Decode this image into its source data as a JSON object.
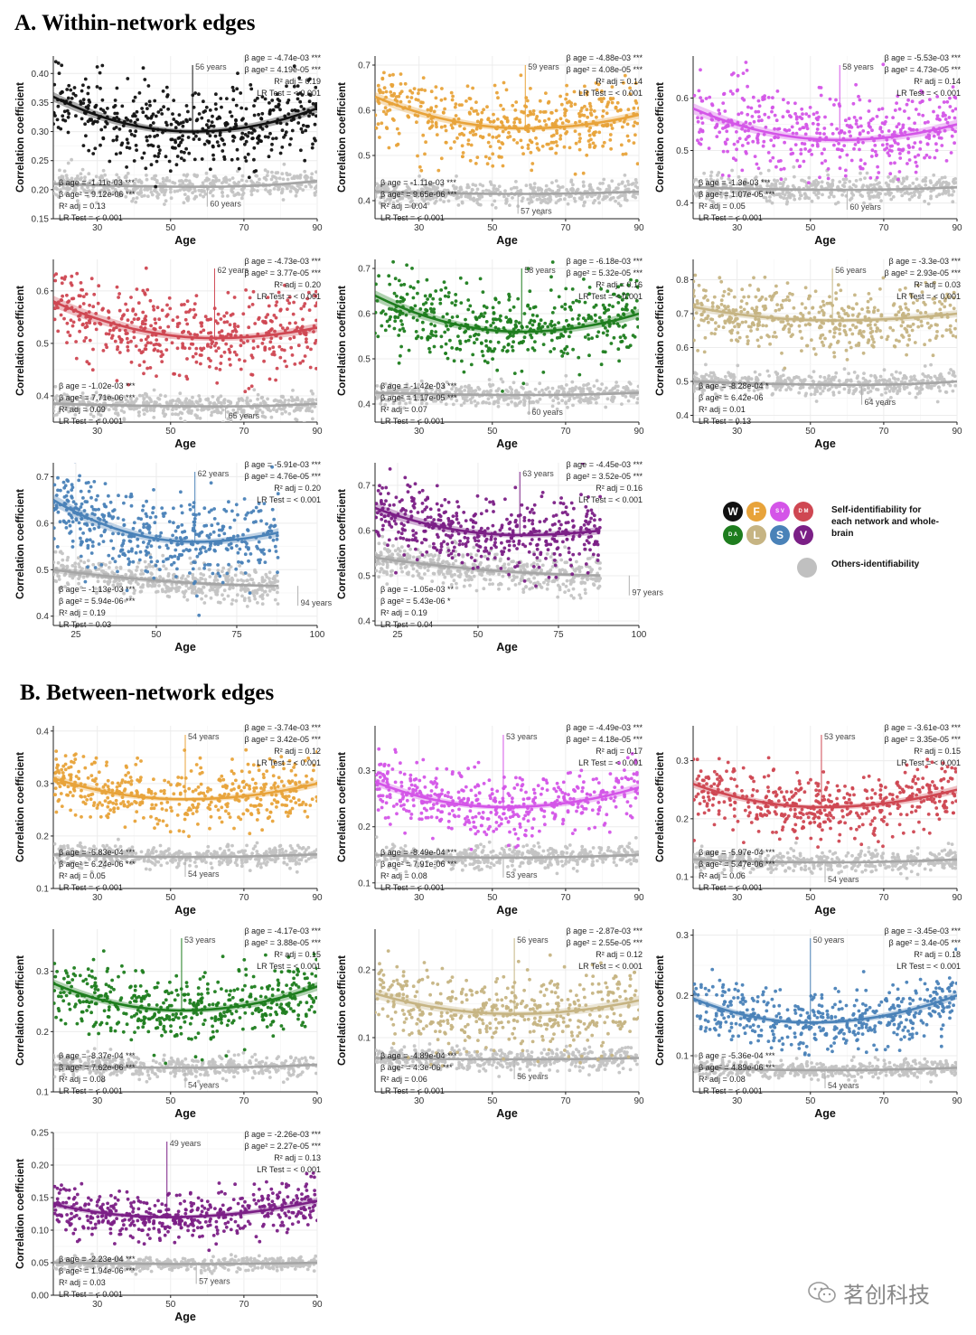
{
  "sections": {
    "A": "A. Within-network edges",
    "B": "B. Between-network edges"
  },
  "legend": {
    "dots": [
      {
        "label": "W",
        "color": "#111111"
      },
      {
        "label": "F",
        "color": "#e8a33a"
      },
      {
        "label": "S V",
        "color": "#d455e8"
      },
      {
        "label": "D M",
        "color": "#cf4752"
      },
      {
        "label": "D A",
        "color": "#1e7d1e"
      },
      {
        "label": "L",
        "color": "#c6b483"
      },
      {
        "label": "S",
        "color": "#4a82b8"
      },
      {
        "label": "V",
        "color": "#7b1f86"
      }
    ],
    "self_text": "Self-identifiability for each network and whole-brain",
    "others_text": "Others-identifiability",
    "others_color": "#c0c0c0"
  },
  "watermark": "茗创科技",
  "chart_data": [
    {
      "id": "A1",
      "type": "scatter",
      "color": "#111111",
      "xlabel": "Age",
      "ylabel": "Correlation coefficient",
      "xlim": [
        18,
        90
      ],
      "ylim": [
        0.15,
        0.43
      ],
      "xticks": [
        30,
        50,
        70,
        90
      ],
      "yticks": [
        0.15,
        0.2,
        0.25,
        0.3,
        0.35,
        0.4
      ],
      "ytick_labels": [
        "0.15",
        "0.20",
        "0.25",
        "0.30",
        "0.35",
        "0.40"
      ],
      "self": {
        "start": 0.36,
        "min": 0.3,
        "min_age": 56,
        "end": 0.34,
        "spread": 0.033,
        "vertex_label": "56 years",
        "stats": [
          "β age = -4.74e-03 ***",
          "β age² = 4.19e-05 ***",
          "R² adj = 0.19",
          "LR Test = < 0.001"
        ]
      },
      "others": {
        "start": 0.21,
        "min": 0.205,
        "min_age": 60,
        "end": 0.215,
        "spread": 0.012,
        "vertex_label": "60 years",
        "stats": [
          "β age = -1.11e-03 ***",
          "β age² = 9.12e-06 ***",
          "R² adj = 0.13",
          "LR Test = < 0.001"
        ]
      }
    },
    {
      "id": "A2",
      "type": "scatter",
      "color": "#e8a33a",
      "xlabel": "Age",
      "ylabel": "Correlation coefficient",
      "xlim": [
        18,
        90
      ],
      "ylim": [
        0.36,
        0.72
      ],
      "xticks": [
        30,
        50,
        70,
        90
      ],
      "yticks": [
        0.4,
        0.5,
        0.6,
        0.7
      ],
      "ytick_labels": [
        "0.4",
        "0.5",
        "0.6",
        "0.7"
      ],
      "self": {
        "start": 0.63,
        "min": 0.56,
        "min_age": 59,
        "end": 0.59,
        "spread": 0.04,
        "vertex_label": "59 years",
        "stats": [
          "β age = -4.88e-03 ***",
          "β age² = 4.08e-05 ***",
          "R² adj = 0.14",
          "LR Test = < 0.001"
        ]
      },
      "others": {
        "start": 0.42,
        "min": 0.415,
        "min_age": 57,
        "end": 0.42,
        "spread": 0.013,
        "vertex_label": "57 years",
        "stats": [
          "β age = -1.11e-03 ***",
          "β age² = 9.65e-06 ***",
          "R² adj = 0.04",
          "LR Test = < 0.001"
        ]
      }
    },
    {
      "id": "A3",
      "type": "scatter",
      "color": "#d455e8",
      "xlabel": "Age",
      "ylabel": "Correlation coefficient",
      "xlim": [
        18,
        90
      ],
      "ylim": [
        0.37,
        0.68
      ],
      "xticks": [
        30,
        50,
        70,
        90
      ],
      "yticks": [
        0.4,
        0.5,
        0.6
      ],
      "ytick_labels": [
        "0.4",
        "0.5",
        "0.6"
      ],
      "self": {
        "start": 0.58,
        "min": 0.52,
        "min_age": 58,
        "end": 0.55,
        "spread": 0.04,
        "vertex_label": "58 years",
        "stats": [
          "β age = -5.53e-03 ***",
          "β age² = 4.73e-05 ***",
          "R² adj = 0.14",
          "LR Test = < 0.001"
        ]
      },
      "others": {
        "start": 0.43,
        "min": 0.425,
        "min_age": 60,
        "end": 0.43,
        "spread": 0.012,
        "vertex_label": "60 years",
        "stats": [
          "β age = -1.3e-03 ***",
          "β age² = 1.07e-05 ***",
          "R² adj = 0.05",
          "LR Test = < 0.001"
        ]
      }
    },
    {
      "id": "A4",
      "type": "scatter",
      "color": "#cf4752",
      "xlabel": "Age",
      "ylabel": "Correlation coefficient",
      "xlim": [
        18,
        90
      ],
      "ylim": [
        0.35,
        0.66
      ],
      "xticks": [
        30,
        50,
        70,
        90
      ],
      "yticks": [
        0.4,
        0.5,
        0.6
      ],
      "ytick_labels": [
        "0.4",
        "0.5",
        "0.6"
      ],
      "self": {
        "start": 0.58,
        "min": 0.51,
        "min_age": 62,
        "end": 0.53,
        "spread": 0.04,
        "vertex_label": "62 years",
        "stats": [
          "β age = -4.73e-03 ***",
          "β age² = 3.77e-05 ***",
          "R² adj = 0.20",
          "LR Test = < 0.001"
        ]
      },
      "others": {
        "start": 0.385,
        "min": 0.38,
        "min_age": 65,
        "end": 0.385,
        "spread": 0.011,
        "vertex_label": "65 years",
        "stats": [
          "β age = -1.02e-03 ***",
          "β age² = 7.71e-06 ***",
          "R² adj = 0.09",
          "LR Test = < 0.001"
        ]
      }
    },
    {
      "id": "A5",
      "type": "scatter",
      "color": "#1e7d1e",
      "xlabel": "Age",
      "ylabel": "Correlation coefficient",
      "xlim": [
        18,
        90
      ],
      "ylim": [
        0.36,
        0.72
      ],
      "xticks": [
        30,
        50,
        70,
        90
      ],
      "yticks": [
        0.4,
        0.5,
        0.6,
        0.7
      ],
      "ytick_labels": [
        "0.4",
        "0.5",
        "0.6",
        "0.7"
      ],
      "self": {
        "start": 0.64,
        "min": 0.56,
        "min_age": 58,
        "end": 0.6,
        "spread": 0.045,
        "vertex_label": "58 years",
        "stats": [
          "β age = -6.18e-03 ***",
          "β age² = 5.32e-05 ***",
          "R² adj = 0.16",
          "LR Test = < 0.001"
        ]
      },
      "others": {
        "start": 0.425,
        "min": 0.42,
        "min_age": 60,
        "end": 0.425,
        "spread": 0.013,
        "vertex_label": "60 years",
        "stats": [
          "β age = -1.42e-03 ***",
          "β age² = 1.17e-05 ***",
          "R² adj = 0.07",
          "LR Test = < 0.001"
        ]
      }
    },
    {
      "id": "A6",
      "type": "scatter",
      "color": "#c6b483",
      "xlabel": "Age",
      "ylabel": "Correlation coefficient",
      "xlim": [
        18,
        90
      ],
      "ylim": [
        0.38,
        0.86
      ],
      "xticks": [
        30,
        50,
        70,
        90
      ],
      "yticks": [
        0.4,
        0.5,
        0.6,
        0.7,
        0.8
      ],
      "ytick_labels": [
        "0.4",
        "0.5",
        "0.6",
        "0.7",
        "0.8"
      ],
      "self": {
        "start": 0.72,
        "min": 0.68,
        "min_age": 56,
        "end": 0.7,
        "spread": 0.045,
        "vertex_label": "56 years",
        "stats": [
          "β age = -3.3e-03 ***",
          "β age² = 2.93e-05 ***",
          "R² adj = 0.03",
          "LR Test = < 0.001"
        ]
      },
      "others": {
        "start": 0.5,
        "min": 0.49,
        "min_age": 64,
        "end": 0.5,
        "spread": 0.018,
        "vertex_label": "64 years",
        "stats": [
          "β age = -8.28e-04 *",
          "β age² = 6.42e-06",
          "R² adj = 0.01",
          "LR Test = 0.13"
        ]
      }
    },
    {
      "id": "A7",
      "type": "scatter",
      "color": "#4a82b8",
      "xlabel": "Age",
      "ylabel": "Correlation coefficient",
      "xlim": [
        18,
        100
      ],
      "xmax_data": 88,
      "ylim": [
        0.38,
        0.73
      ],
      "xticks": [
        25,
        50,
        75,
        100
      ],
      "yticks": [
        0.4,
        0.5,
        0.6,
        0.7
      ],
      "ytick_labels": [
        "0.4",
        "0.5",
        "0.6",
        "0.7"
      ],
      "self": {
        "start": 0.65,
        "min": 0.56,
        "min_age": 62,
        "end": 0.58,
        "spread": 0.045,
        "vertex_label": "62 years",
        "stats": [
          "β age = -5.91e-03 ***",
          "β age² = 4.76e-05 ***",
          "R² adj = 0.20",
          "LR Test = < 0.001"
        ]
      },
      "others": {
        "start": 0.5,
        "min": 0.465,
        "min_age": 94,
        "end": 0.466,
        "spread": 0.018,
        "vertex_label": "94 years",
        "stats": [
          "β age = -1.13e-03 ***",
          "β age² = 5.94e-06 ***",
          "R² adj = 0.19",
          "LR Test = 0.03"
        ]
      }
    },
    {
      "id": "A8",
      "type": "scatter",
      "color": "#7b1f86",
      "xlabel": "Age",
      "ylabel": "Correlation coefficient",
      "xlim": [
        18,
        100
      ],
      "xmax_data": 88,
      "ylim": [
        0.39,
        0.75
      ],
      "xticks": [
        25,
        50,
        75,
        100
      ],
      "yticks": [
        0.4,
        0.5,
        0.6,
        0.7
      ],
      "ytick_labels": [
        "0.4",
        "0.5",
        "0.6",
        "0.7"
      ],
      "self": {
        "start": 0.65,
        "min": 0.59,
        "min_age": 63,
        "end": 0.6,
        "spread": 0.04,
        "vertex_label": "63 years",
        "stats": [
          "β age = -4.45e-03 ***",
          "β age² = 3.52e-05 ***",
          "R² adj = 0.16",
          "LR Test = < 0.001"
        ]
      },
      "others": {
        "start": 0.54,
        "min": 0.5,
        "min_age": 97,
        "end": 0.5,
        "spread": 0.02,
        "vertex_label": "97 years",
        "stats": [
          "β age = -1.05e-03 **",
          "β age² = 5.43e-06 *",
          "R² adj = 0.19",
          "LR Test = 0.04"
        ]
      }
    },
    {
      "id": "B1",
      "type": "scatter",
      "color": "#e8a33a",
      "xlabel": "Age",
      "ylabel": "Correlation coefficient",
      "xlim": [
        18,
        90
      ],
      "ylim": [
        0.1,
        0.41
      ],
      "xticks": [
        30,
        50,
        70,
        90
      ],
      "yticks": [
        0.1,
        0.2,
        0.3,
        0.4
      ],
      "ytick_labels": [
        "0.1",
        "0.2",
        "0.3",
        "0.4"
      ],
      "self": {
        "start": 0.31,
        "min": 0.27,
        "min_age": 54,
        "end": 0.3,
        "spread": 0.03,
        "vertex_label": "54 years",
        "stats": [
          "β age = -3.74e-03 ***",
          "β age² = 3.42e-05 ***",
          "R² adj = 0.12",
          "LR Test = < 0.001"
        ]
      },
      "others": {
        "start": 0.165,
        "min": 0.16,
        "min_age": 54,
        "end": 0.165,
        "spread": 0.01,
        "vertex_label": "54 years",
        "stats": [
          "β age = -6.83e-04 ***",
          "β age² = 6.24e-06 ***",
          "R² adj = 0.05",
          "LR Test = < 0.001"
        ]
      }
    },
    {
      "id": "B2",
      "type": "scatter",
      "color": "#d455e8",
      "xlabel": "Age",
      "ylabel": "Correlation coefficient",
      "xlim": [
        18,
        90
      ],
      "ylim": [
        0.09,
        0.38
      ],
      "xticks": [
        30,
        50,
        70,
        90
      ],
      "yticks": [
        0.1,
        0.2,
        0.3
      ],
      "ytick_labels": [
        "0.1",
        "0.2",
        "0.3"
      ],
      "self": {
        "start": 0.28,
        "min": 0.235,
        "min_age": 53,
        "end": 0.27,
        "spread": 0.03,
        "vertex_label": "53 years",
        "stats": [
          "β age = -4.49e-03 ***",
          "β age² = 4.18e-05 ***",
          "R² adj = 0.17",
          "LR Test = < 0.001"
        ]
      },
      "others": {
        "start": 0.15,
        "min": 0.145,
        "min_age": 53,
        "end": 0.15,
        "spread": 0.01,
        "vertex_label": "53 years",
        "stats": [
          "β age = -8.49e-04 ***",
          "β age² = 7.91e-06 ***",
          "R² adj = 0.08",
          "LR Test = < 0.001"
        ]
      }
    },
    {
      "id": "B3",
      "type": "scatter",
      "color": "#cf4752",
      "xlabel": "Age",
      "ylabel": "Correlation coefficient",
      "xlim": [
        18,
        90
      ],
      "ylim": [
        0.08,
        0.36
      ],
      "xticks": [
        30,
        50,
        70,
        90
      ],
      "yticks": [
        0.1,
        0.2,
        0.3
      ],
      "ytick_labels": [
        "0.1",
        "0.2",
        "0.3"
      ],
      "self": {
        "start": 0.26,
        "min": 0.22,
        "min_age": 53,
        "end": 0.25,
        "spread": 0.028,
        "vertex_label": "53 years",
        "stats": [
          "β age = -3.61e-03 ***",
          "β age² = 3.35e-05 ***",
          "R² adj = 0.15",
          "LR Test = < 0.001"
        ]
      },
      "others": {
        "start": 0.13,
        "min": 0.125,
        "min_age": 54,
        "end": 0.13,
        "spread": 0.009,
        "vertex_label": "54 years",
        "stats": [
          "β age = -5.97e-04 ***",
          "β age² = 5.47e-06 ***",
          "R² adj = 0.06",
          "LR Test = < 0.001"
        ]
      }
    },
    {
      "id": "B4",
      "type": "scatter",
      "color": "#1e7d1e",
      "xlabel": "Age",
      "ylabel": "Correlation coefficient",
      "xlim": [
        18,
        90
      ],
      "ylim": [
        0.1,
        0.37
      ],
      "xticks": [
        30,
        50,
        70,
        90
      ],
      "yticks": [
        0.1,
        0.2,
        0.3
      ],
      "ytick_labels": [
        "0.1",
        "0.2",
        "0.3"
      ],
      "self": {
        "start": 0.28,
        "min": 0.235,
        "min_age": 53,
        "end": 0.275,
        "spread": 0.03,
        "vertex_label": "53 years",
        "stats": [
          "β age = -4.17e-03 ***",
          "β age² = 3.88e-05 ***",
          "R² adj = 0.15",
          "LR Test = < 0.001"
        ]
      },
      "others": {
        "start": 0.145,
        "min": 0.14,
        "min_age": 54,
        "end": 0.145,
        "spread": 0.009,
        "vertex_label": "54 years",
        "stats": [
          "β age = -8.37e-04 ***",
          "β age² = 7.62e-06 ***",
          "R² adj = 0.08",
          "LR Test = < 0.001"
        ]
      }
    },
    {
      "id": "B5",
      "type": "scatter",
      "color": "#c6b483",
      "xlabel": "Age",
      "ylabel": "Correlation coefficient",
      "xlim": [
        18,
        90
      ],
      "ylim": [
        0.02,
        0.26
      ],
      "xticks": [
        30,
        50,
        70,
        90
      ],
      "yticks": [
        0.1,
        0.2
      ],
      "ytick_labels": [
        "0.1",
        "0.2"
      ],
      "self": {
        "start": 0.165,
        "min": 0.135,
        "min_age": 56,
        "end": 0.155,
        "spread": 0.03,
        "vertex_label": "56 years",
        "stats": [
          "β age = -2.87e-03 ***",
          "β age² = 2.55e-05 ***",
          "R² adj = 0.12",
          "LR Test = < 0.001"
        ]
      },
      "others": {
        "start": 0.07,
        "min": 0.068,
        "min_age": 56,
        "end": 0.07,
        "spread": 0.008,
        "vertex_label": "56 years",
        "stats": [
          "β age = -4.89e-04 ***",
          "β age² = 4.3e-06 ***",
          "R² adj = 0.06",
          "LR Test = < 0.001"
        ]
      }
    },
    {
      "id": "B6",
      "type": "scatter",
      "color": "#4a82b8",
      "xlabel": "Age",
      "ylabel": "Correlation coefficient",
      "xlim": [
        18,
        90
      ],
      "ylim": [
        0.04,
        0.31
      ],
      "xticks": [
        30,
        50,
        70,
        90
      ],
      "yticks": [
        0.1,
        0.2,
        0.3
      ],
      "ytick_labels": [
        "0.1",
        "0.2",
        "0.3"
      ],
      "self": {
        "start": 0.195,
        "min": 0.155,
        "min_age": 50,
        "end": 0.2,
        "spread": 0.025,
        "vertex_label": "50 years",
        "stats": [
          "β age = -3.45e-03 ***",
          "β age² = 3.4e-05 ***",
          "R² adj = 0.18",
          "LR Test = < 0.001"
        ]
      },
      "others": {
        "start": 0.08,
        "min": 0.076,
        "min_age": 54,
        "end": 0.08,
        "spread": 0.007,
        "vertex_label": "54 years",
        "stats": [
          "β age = -5.36e-04 ***",
          "β age² = 4.89e-06 ***",
          "R² adj = 0.08",
          "LR Test = < 0.001"
        ]
      }
    },
    {
      "id": "B7",
      "type": "scatter",
      "color": "#7b1f86",
      "xlabel": "Age",
      "ylabel": "Correlation coefficient",
      "xlim": [
        18,
        90
      ],
      "ylim": [
        0.0,
        0.25
      ],
      "xticks": [
        30,
        50,
        70,
        90
      ],
      "yticks": [
        0.0,
        0.05,
        0.1,
        0.15,
        0.2,
        0.25
      ],
      "ytick_labels": [
        "0.00",
        "0.05",
        "0.10",
        "0.15",
        "0.20",
        "0.25"
      ],
      "self": {
        "start": 0.14,
        "min": 0.12,
        "min_age": 49,
        "end": 0.145,
        "spread": 0.02,
        "vertex_label": "49 years",
        "stats": [
          "β age = -2.26e-03 ***",
          "β age² = 2.27e-05 ***",
          "R² adj = 0.13",
          "LR Test = < 0.001"
        ]
      },
      "others": {
        "start": 0.05,
        "min": 0.048,
        "min_age": 57,
        "end": 0.05,
        "spread": 0.005,
        "vertex_label": "57 years",
        "stats": [
          "β age = -2.23e-04 ***",
          "β age² = 1.94e-06 ***",
          "R² adj = 0.03",
          "LR Test = < 0.001"
        ]
      }
    }
  ]
}
